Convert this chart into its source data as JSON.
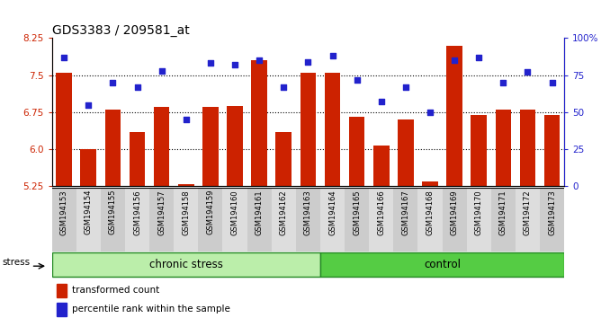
{
  "title": "GDS3383 / 209581_at",
  "samples": [
    "GSM194153",
    "GSM194154",
    "GSM194155",
    "GSM194156",
    "GSM194157",
    "GSM194158",
    "GSM194159",
    "GSM194160",
    "GSM194161",
    "GSM194162",
    "GSM194163",
    "GSM194164",
    "GSM194165",
    "GSM194166",
    "GSM194167",
    "GSM194168",
    "GSM194169",
    "GSM194170",
    "GSM194171",
    "GSM194172",
    "GSM194173"
  ],
  "bar_values": [
    7.55,
    6.0,
    6.8,
    6.35,
    6.85,
    5.28,
    6.85,
    6.88,
    7.8,
    6.35,
    7.55,
    7.55,
    6.65,
    6.08,
    6.6,
    5.35,
    8.1,
    6.7,
    6.8,
    6.8,
    6.7
  ],
  "dot_values": [
    87,
    55,
    70,
    67,
    78,
    45,
    83,
    82,
    85,
    67,
    84,
    88,
    72,
    57,
    67,
    50,
    85,
    87,
    70,
    77,
    70
  ],
  "n_chronic": 11,
  "n_control": 10,
  "ylim_left": [
    5.25,
    8.25
  ],
  "yticks_left": [
    5.25,
    6.0,
    6.75,
    7.5,
    8.25
  ],
  "ylim_right": [
    0,
    100
  ],
  "yticks_right": [
    0,
    25,
    50,
    75,
    100
  ],
  "yticklabels_right": [
    "0",
    "25",
    "50",
    "75",
    "100%"
  ],
  "bar_color": "#cc2200",
  "dot_color": "#2222cc",
  "bg_color": "#ffffff",
  "chronic_stress_color": "#bbeeaa",
  "control_color": "#55cc44",
  "tick_bg_even": "#cccccc",
  "tick_bg_odd": "#dddddd",
  "label_bar": "transformed count",
  "label_dot": "percentile rank within the sample",
  "stress_label": "stress",
  "chronic_label": "chronic stress",
  "control_label": "control"
}
